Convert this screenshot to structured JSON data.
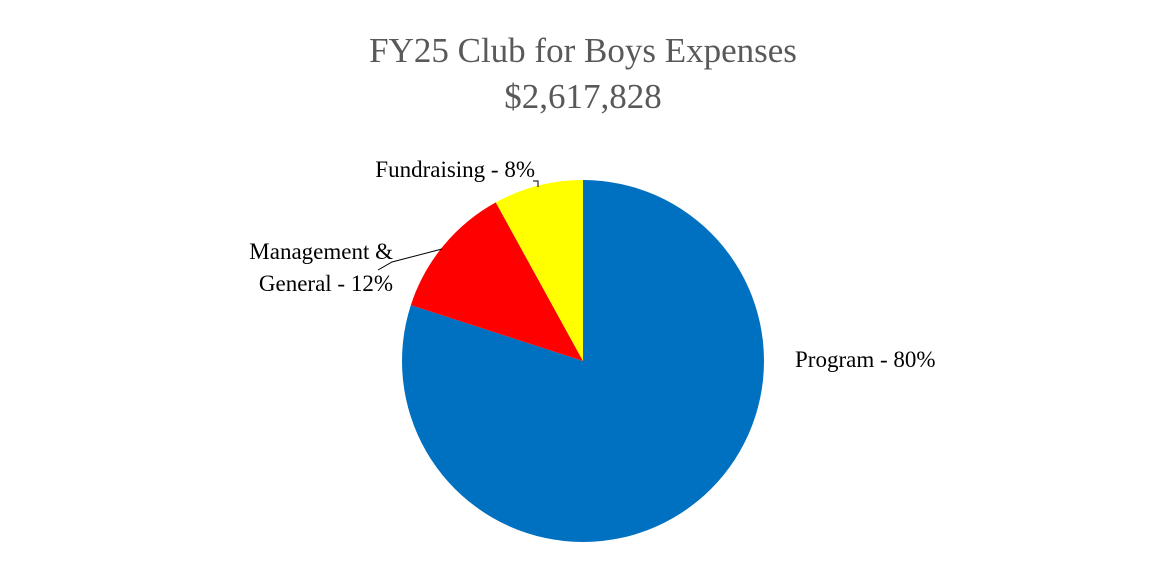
{
  "chart_data": {
    "type": "pie",
    "title": "FY25 Club for Boys Expenses",
    "subtitle": "$2,617,828",
    "values": [
      80,
      12,
      8
    ],
    "value_labels": [
      "Program - 80%",
      "Management & General - 12%",
      "Fundraising - 8%"
    ],
    "colors": [
      "#0070c0",
      "#ff0000",
      "#ffff00"
    ]
  }
}
